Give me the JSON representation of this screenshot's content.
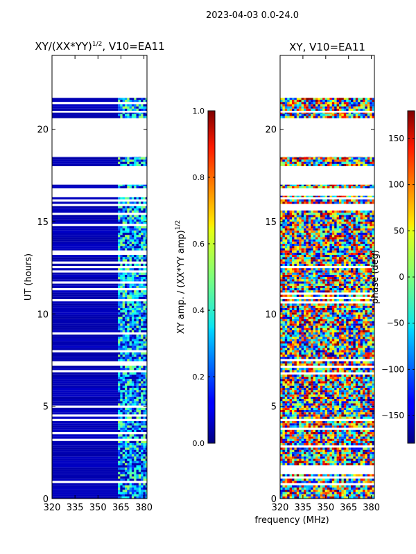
{
  "suptitle": "2023-04-03 0.0-24.0",
  "chart_data": [
    {
      "type": "heatmap",
      "title_main": "XY/(XX*YY)",
      "title_exp": "1/2",
      "title_rest": ", V10=EA11",
      "xlabel": "",
      "ylabel": "UT (hours)",
      "xlim": [
        320,
        382
      ],
      "ylim": [
        0,
        24
      ],
      "xticks": [
        "320",
        "335",
        "350",
        "365",
        "380"
      ],
      "xtick_values": [
        320,
        335,
        350,
        365,
        380
      ],
      "yticks": [
        "0",
        "5",
        "10",
        "15",
        "20"
      ],
      "ytick_values": [
        0,
        5,
        10,
        15,
        20
      ],
      "data_coverage_hours": [
        [
          0,
          16.4
        ],
        [
          16.8,
          17.0
        ],
        [
          18.0,
          18.5
        ],
        [
          20.6,
          20.9
        ],
        [
          21.0,
          21.7
        ]
      ],
      "band_freq_mhz": [
        363,
        383
      ],
      "colorbar": {
        "label_main": "XY amp. / (XX*YY amp)",
        "label_exp": "1/2",
        "range": [
          0,
          1
        ],
        "ticks": [
          "0.0",
          "0.2",
          "0.4",
          "0.6",
          "0.8",
          "1.0"
        ],
        "tick_values": [
          0,
          0.2,
          0.4,
          0.6,
          0.8,
          1.0
        ]
      }
    },
    {
      "type": "heatmap",
      "title": "XY, V10=EA11",
      "xlabel": "frequency (MHz)",
      "ylabel": "",
      "xlim": [
        320,
        382
      ],
      "ylim": [
        0,
        24
      ],
      "xticks": [
        "320",
        "335",
        "350",
        "365",
        "380"
      ],
      "xtick_values": [
        320,
        335,
        350,
        365,
        380
      ],
      "yticks": [
        "0",
        "5",
        "10",
        "15",
        "20"
      ],
      "ytick_values": [
        0,
        5,
        10,
        15,
        20
      ],
      "data_coverage_hours": [
        [
          0,
          16.4
        ],
        [
          16.8,
          17.0
        ],
        [
          18.0,
          18.5
        ],
        [
          20.6,
          20.9
        ],
        [
          21.0,
          21.7
        ]
      ],
      "colorbar": {
        "label": "phase (deg)",
        "range": [
          -180,
          180
        ],
        "ticks": [
          "150",
          "100",
          "50",
          "0",
          "−50",
          "−100",
          "−150"
        ],
        "tick_values": [
          150,
          100,
          50,
          0,
          -50,
          -100,
          -150
        ]
      }
    }
  ]
}
